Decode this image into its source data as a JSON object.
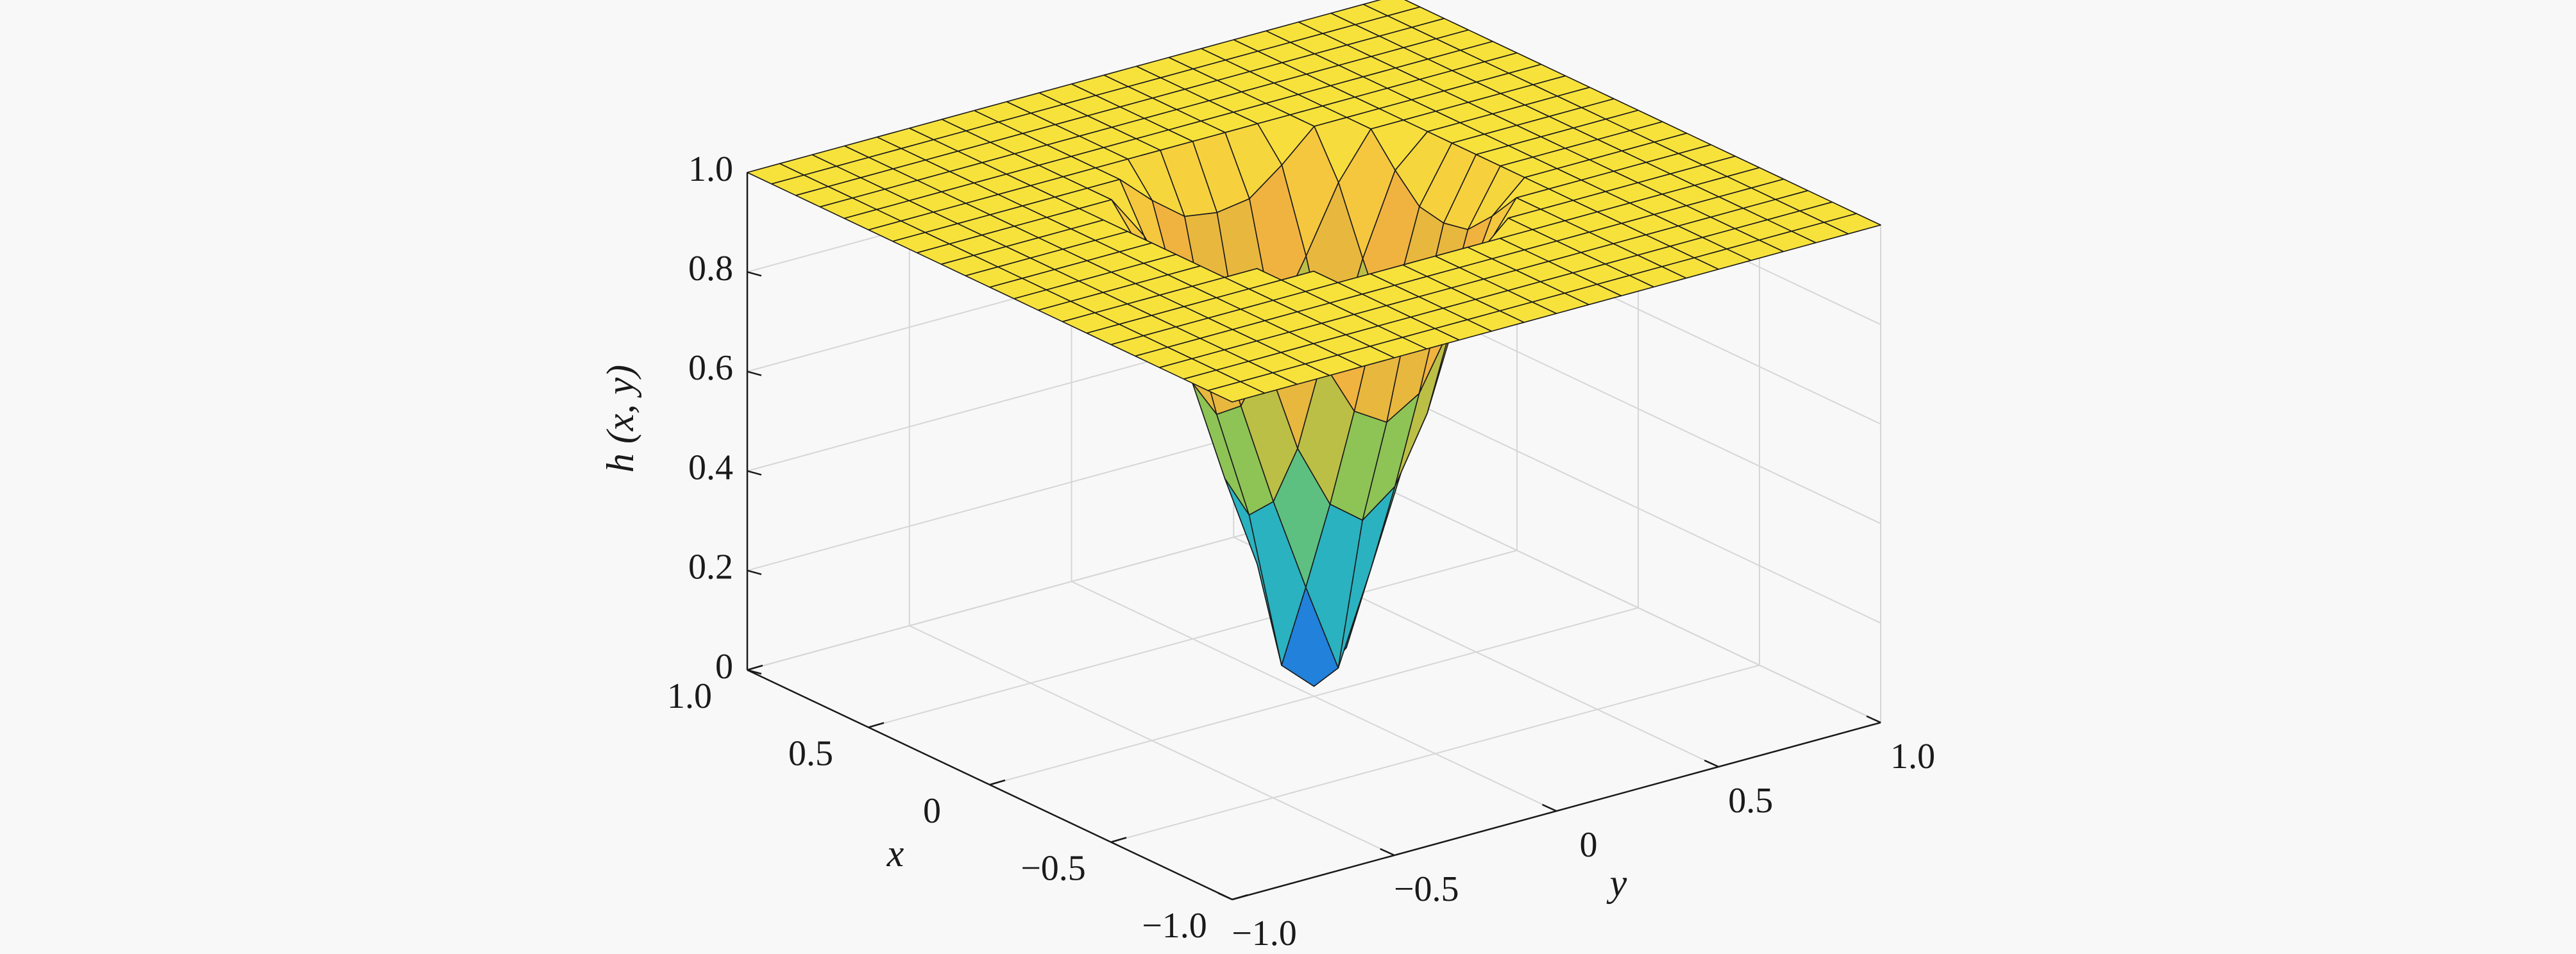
{
  "chart_data": {
    "type": "surface",
    "zlabel": "h (x, y)",
    "xlabel": "x",
    "ylabel": "y",
    "x": [
      -1,
      -0.9,
      -0.8,
      -0.7,
      -0.6,
      -0.5,
      -0.4,
      -0.3,
      -0.2,
      -0.1,
      0,
      0.1,
      0.2,
      0.3,
      0.4,
      0.5,
      0.6,
      0.7,
      0.8,
      0.9,
      1
    ],
    "y": [
      -1,
      -0.9,
      -0.8,
      -0.7,
      -0.6,
      -0.5,
      -0.4,
      -0.3,
      -0.2,
      -0.1,
      0,
      0.1,
      0.2,
      0.3,
      0.4,
      0.5,
      0.6,
      0.7,
      0.8,
      0.9,
      1
    ],
    "z": [
      [
        1,
        1,
        1,
        1,
        1,
        1,
        1,
        1,
        1,
        1,
        1,
        1,
        1,
        1,
        1,
        1,
        1,
        1,
        1,
        1,
        1
      ],
      [
        1,
        1,
        1,
        1,
        1,
        1,
        1,
        1,
        1,
        1,
        1,
        1,
        1,
        1,
        1,
        1,
        1,
        1,
        1,
        1,
        1
      ],
      [
        1,
        1,
        1,
        1,
        1,
        1,
        1,
        1,
        1,
        1,
        1,
        1,
        1,
        1,
        1,
        1,
        1,
        1,
        1,
        1,
        1
      ],
      [
        1,
        1,
        1,
        1,
        1,
        1,
        1,
        1,
        1,
        1,
        1,
        1,
        1,
        1,
        1,
        1,
        1,
        1,
        1,
        1,
        1
      ],
      [
        1,
        1,
        1,
        1,
        1,
        1,
        1,
        1,
        1,
        1,
        1,
        1,
        1,
        1,
        1,
        1,
        1,
        1,
        1,
        1,
        1
      ],
      [
        1,
        1,
        1,
        1,
        1,
        1,
        1,
        1,
        1,
        1,
        1,
        1,
        1,
        1,
        1,
        1,
        1,
        1,
        1,
        1,
        1
      ],
      [
        1,
        1,
        1,
        1,
        1,
        1,
        1,
        1,
        0.94,
        0.89,
        0.88,
        0.89,
        0.94,
        1,
        1,
        1,
        1,
        1,
        1,
        1,
        1
      ],
      [
        1,
        1,
        1,
        1,
        1,
        1,
        1,
        0.91,
        0.78,
        0.66,
        0.62,
        0.66,
        0.78,
        0.91,
        1,
        1,
        1,
        1,
        1,
        1,
        1
      ],
      [
        1,
        1,
        1,
        1,
        1,
        1,
        0.94,
        0.78,
        0.58,
        0.45,
        0.4,
        0.45,
        0.58,
        0.78,
        0.94,
        1,
        1,
        1,
        1,
        1,
        1
      ],
      [
        1,
        1,
        1,
        1,
        1,
        1,
        0.89,
        0.66,
        0.45,
        0.26,
        0.08,
        0.26,
        0.45,
        0.66,
        0.89,
        1,
        1,
        1,
        1,
        1,
        1
      ],
      [
        1,
        1,
        1,
        1,
        1,
        1,
        0.88,
        0.62,
        0.4,
        0.08,
        0.02,
        0.08,
        0.4,
        0.62,
        0.88,
        1,
        1,
        1,
        1,
        1,
        1
      ],
      [
        1,
        1,
        1,
        1,
        1,
        1,
        0.89,
        0.66,
        0.45,
        0.26,
        0.08,
        0.26,
        0.45,
        0.66,
        0.89,
        1,
        1,
        1,
        1,
        1,
        1
      ],
      [
        1,
        1,
        1,
        1,
        1,
        1,
        0.94,
        0.78,
        0.58,
        0.45,
        0.4,
        0.45,
        0.58,
        0.78,
        0.94,
        1,
        1,
        1,
        1,
        1,
        1
      ],
      [
        1,
        1,
        1,
        1,
        1,
        1,
        1,
        0.91,
        0.78,
        0.66,
        0.62,
        0.66,
        0.78,
        0.91,
        1,
        1,
        1,
        1,
        1,
        1,
        1
      ],
      [
        1,
        1,
        1,
        1,
        1,
        1,
        1,
        1,
        0.94,
        0.89,
        0.88,
        0.89,
        0.94,
        1,
        1,
        1,
        1,
        1,
        1,
        1,
        1
      ],
      [
        1,
        1,
        1,
        1,
        1,
        1,
        1,
        1,
        1,
        1,
        1,
        1,
        1,
        1,
        1,
        1,
        1,
        1,
        1,
        1,
        1
      ],
      [
        1,
        1,
        1,
        1,
        1,
        1,
        1,
        1,
        1,
        1,
        1,
        1,
        1,
        1,
        1,
        1,
        1,
        1,
        1,
        1,
        1
      ],
      [
        1,
        1,
        1,
        1,
        1,
        1,
        1,
        1,
        1,
        1,
        1,
        1,
        1,
        1,
        1,
        1,
        1,
        1,
        1,
        1,
        1
      ],
      [
        1,
        1,
        1,
        1,
        1,
        1,
        1,
        1,
        1,
        1,
        1,
        1,
        1,
        1,
        1,
        1,
        1,
        1,
        1,
        1,
        1
      ],
      [
        1,
        1,
        1,
        1,
        1,
        1,
        1,
        1,
        1,
        1,
        1,
        1,
        1,
        1,
        1,
        1,
        1,
        1,
        1,
        1,
        1
      ],
      [
        1,
        1,
        1,
        1,
        1,
        1,
        1,
        1,
        1,
        1,
        1,
        1,
        1,
        1,
        1,
        1,
        1,
        1,
        1,
        1,
        1
      ]
    ],
    "xlim": [
      -1,
      1
    ],
    "ylim": [
      -1,
      1
    ],
    "zlim": [
      0,
      1
    ],
    "xticks": [
      {
        "value": -1,
        "label": "−1.0"
      },
      {
        "value": -0.5,
        "label": "−0.5"
      },
      0,
      0.5,
      {
        "value": 1,
        "label": "1.0"
      }
    ],
    "yticks": [
      {
        "value": -1,
        "label": "−1.0"
      },
      {
        "value": -0.5,
        "label": "−0.5"
      },
      0,
      0.5,
      {
        "value": 1,
        "label": "1.0"
      }
    ],
    "zticks": [
      0,
      0.2,
      0.4,
      0.6,
      0.8,
      {
        "value": 1,
        "label": "1.0"
      }
    ],
    "grid": true,
    "colormap": [
      "#2f57d8",
      "#1a97dd",
      "#2fb9b8",
      "#7cc45c",
      "#d7bd3c",
      "#f4b240",
      "#f7e23c"
    ],
    "edge_color": "#1a1a1a"
  }
}
